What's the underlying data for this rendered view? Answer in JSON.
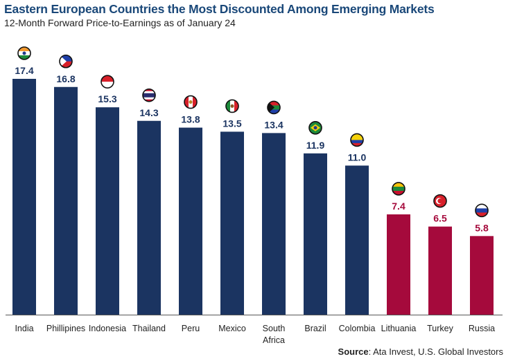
{
  "chart_data": {
    "type": "bar",
    "title": "Eastern European Countries the Most Discounted Among Emerging Markets",
    "subtitle": "12-Month Forward Price-to-Earnings as of January 24",
    "categories": [
      "India",
      "Phillipines",
      "Indonesia",
      "Thailand",
      "Peru",
      "Mexico",
      "South Africa",
      "Brazil",
      "Colombia",
      "Lithuania",
      "Turkey",
      "Russia"
    ],
    "values": [
      17.4,
      16.8,
      15.3,
      14.3,
      13.8,
      13.5,
      13.4,
      11.9,
      11.0,
      7.4,
      6.5,
      5.8
    ],
    "value_labels": [
      "17.4",
      "16.8",
      "15.3",
      "14.3",
      "13.8",
      "13.5",
      "13.4",
      "11.9",
      "11.0",
      "7.4",
      "6.5",
      "5.8"
    ],
    "groups": [
      "emerging",
      "emerging",
      "emerging",
      "emerging",
      "emerging",
      "emerging",
      "emerging",
      "emerging",
      "emerging",
      "eastern-europe",
      "eastern-europe",
      "eastern-europe"
    ],
    "icons": [
      "india-flag-icon",
      "philippines-flag-icon",
      "indonesia-flag-icon",
      "thailand-flag-icon",
      "peru-flag-icon",
      "mexico-flag-icon",
      "south-africa-flag-icon",
      "brazil-flag-icon",
      "colombia-flag-icon",
      "lithuania-flag-icon",
      "turkey-flag-icon",
      "russia-flag-icon"
    ],
    "colors": {
      "emerging": "#1b3461",
      "eastern-europe": "#a50a3c"
    },
    "ylim": [
      0,
      17.4
    ],
    "grid": false,
    "xlabel": "",
    "ylabel": ""
  },
  "source": {
    "label": "Source",
    "text": ": Ata Invest, U.S. Global Investors"
  }
}
